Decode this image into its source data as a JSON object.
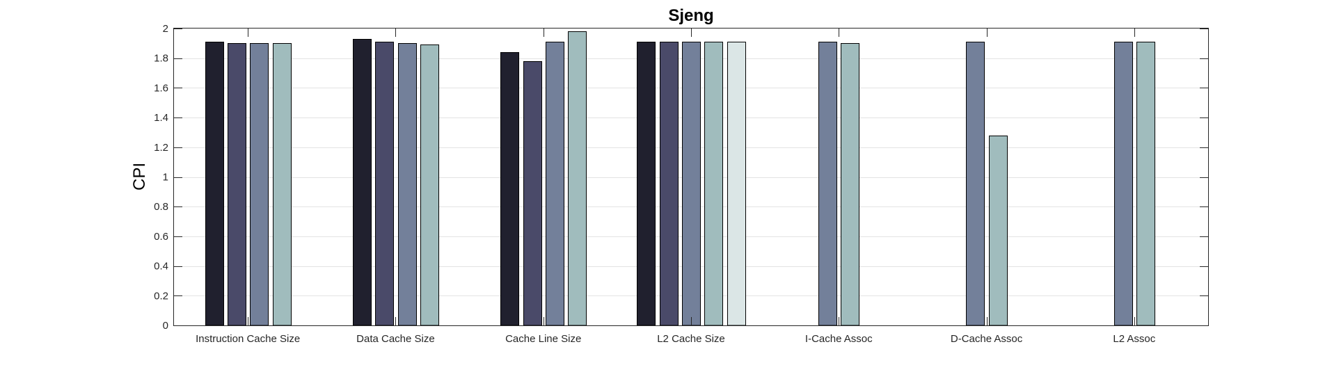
{
  "chart_data": {
    "type": "bar",
    "title": "Sjeng",
    "xlabel": "",
    "ylabel": "CPI",
    "ylim": [
      0,
      2
    ],
    "yticks": [
      "0",
      "0.2",
      "0.4",
      "0.6",
      "0.8",
      "1",
      "1.2",
      "1.4",
      "1.6",
      "1.8",
      "2"
    ],
    "grid": "horizontal",
    "categories": [
      "Instruction Cache Size",
      "Data Cache Size",
      "Cache Line Size",
      "L2 Cache Size",
      "I-Cache Assoc",
      "D-Cache Assoc",
      "L2 Assoc"
    ],
    "series_colors": [
      "#20202e",
      "#4a4a69",
      "#73809a",
      "#a0bcbd",
      "#dbe6e6"
    ],
    "series": [
      {
        "values": [
          1.91,
          1.93,
          1.84,
          1.91,
          null,
          null,
          null
        ]
      },
      {
        "values": [
          1.9,
          1.91,
          1.78,
          1.91,
          null,
          null,
          null
        ]
      },
      {
        "values": [
          1.9,
          1.9,
          1.91,
          1.91,
          1.91,
          1.91,
          1.91
        ]
      },
      {
        "values": [
          1.9,
          1.89,
          1.98,
          1.91,
          1.9,
          1.28,
          1.91
        ]
      },
      {
        "values": [
          null,
          null,
          null,
          1.91,
          null,
          null,
          null
        ]
      }
    ]
  }
}
